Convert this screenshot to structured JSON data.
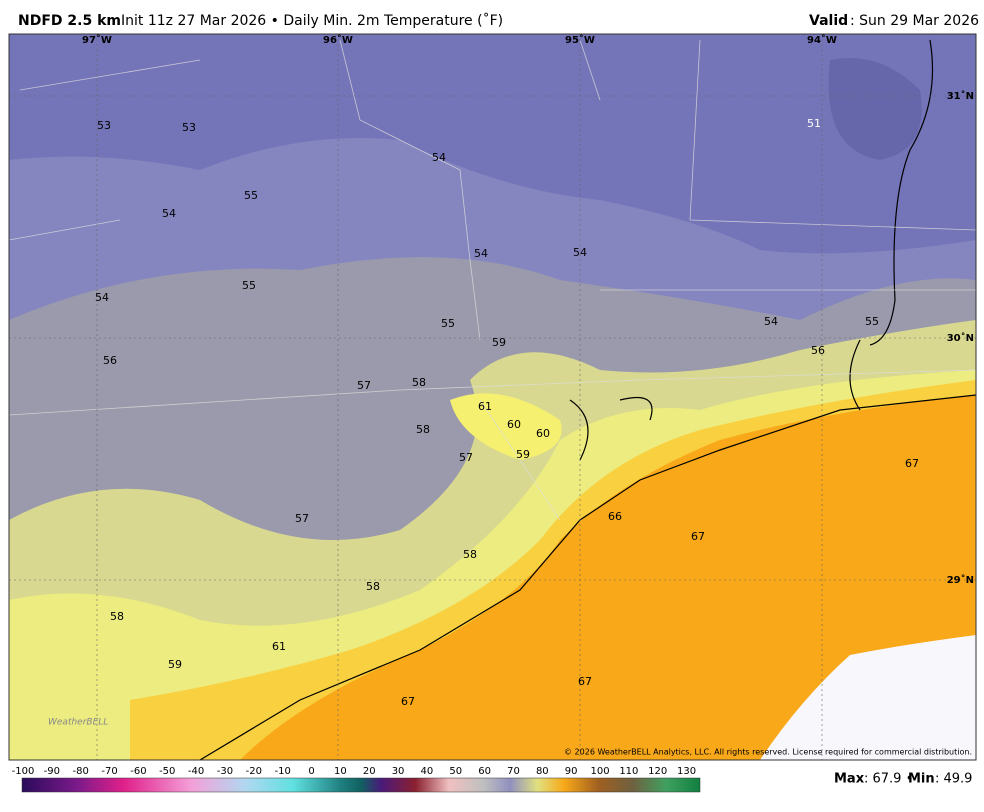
{
  "header": {
    "model": "NDFD 2.5 km",
    "description": "Init 11z 27 Mar 2026 • Daily Min. 2m Temperature (˚F)",
    "valid_label": "Valid",
    "valid_text": ": Sun 29 Mar 2026"
  },
  "map": {
    "lon_labels": [
      "97˚W",
      "96˚W",
      "95˚W",
      "94˚W"
    ],
    "lat_labels": [
      "31˚N",
      "30˚N",
      "29˚N"
    ],
    "values": [
      53,
      53,
      54,
      51,
      55,
      54,
      54,
      54,
      55,
      54,
      55,
      59,
      54,
      55,
      56,
      56,
      57,
      58,
      61,
      60,
      60,
      58,
      57,
      59,
      67,
      66,
      57,
      67,
      58,
      58,
      58,
      61,
      59,
      67,
      67
    ],
    "copyright": "© 2026 WeatherBELL Analytics, LLC. All rights reserved. License required for commercial distribution.",
    "logo": "WeatherBELL"
  },
  "colorbar": {
    "ticks": [
      -100,
      -90,
      -80,
      -70,
      -60,
      -50,
      -40,
      -30,
      -20,
      -10,
      0,
      10,
      20,
      30,
      40,
      50,
      60,
      70,
      80,
      90,
      100,
      110,
      120,
      130
    ]
  },
  "footer": {
    "max_label": "Max",
    "max_text": ": 67.9 •",
    "min_label": "Min",
    "min_text": ": 49.9"
  }
}
